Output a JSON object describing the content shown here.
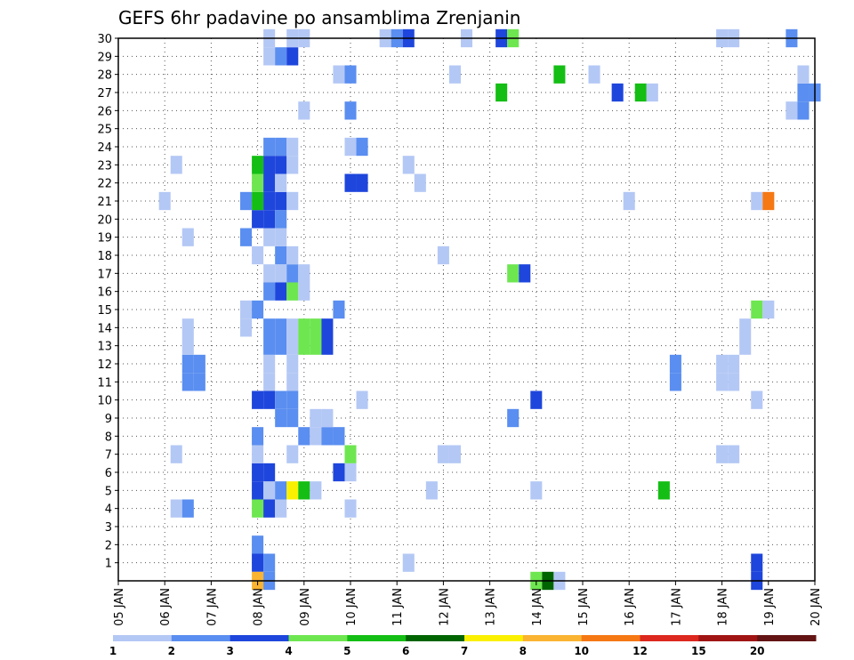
{
  "chart_data": {
    "type": "heatmap",
    "title": "GEFS 6hr padavine po ansamblima Zrenjanin",
    "xlabel": "",
    "ylabel": "",
    "x_ticks": [
      "05 JAN",
      "06 JAN",
      "07 JAN",
      "08 JAN",
      "09 JAN",
      "10 JAN",
      "11 JAN",
      "12 JAN",
      "13 JAN",
      "14 JAN",
      "15 JAN",
      "16 JAN",
      "17 JAN",
      "18 JAN",
      "19 JAN",
      "20 JAN"
    ],
    "y_ticks": [
      "1",
      "2",
      "3",
      "4",
      "5",
      "6",
      "7",
      "8",
      "9",
      "10",
      "11",
      "12",
      "13",
      "14",
      "15",
      "16",
      "17",
      "18",
      "19",
      "20",
      "21",
      "22",
      "23",
      "24",
      "25",
      "26",
      "27",
      "28",
      "29",
      "30"
    ],
    "xlim": [
      0,
      60
    ],
    "ylim": [
      0,
      30
    ],
    "time_step_hours": 6,
    "grid": true,
    "colorbar": {
      "position": "bottom",
      "ticks": [
        "1",
        "2",
        "3",
        "4",
        "5",
        "6",
        "7",
        "8",
        "10",
        "12",
        "15",
        "20"
      ],
      "colors": [
        "#b4c8f5",
        "#5a8ef0",
        "#1e46dc",
        "#6ee650",
        "#14be14",
        "#006400",
        "#faf000",
        "#fab432",
        "#f57814",
        "#dc281e",
        "#a01414",
        "#641414"
      ]
    },
    "cells": [
      [
        12,
        1,
        3
      ],
      [
        13,
        1,
        2
      ],
      [
        25,
        1,
        1
      ],
      [
        55,
        1,
        3
      ],
      [
        12,
        2,
        2
      ],
      [
        5,
        4,
        1
      ],
      [
        6,
        4,
        2
      ],
      [
        12,
        4,
        4
      ],
      [
        13,
        4,
        3
      ],
      [
        14,
        4,
        1
      ],
      [
        20,
        4,
        1
      ],
      [
        12,
        5,
        3
      ],
      [
        13,
        5,
        1
      ],
      [
        14,
        5,
        2
      ],
      [
        15,
        5,
        7
      ],
      [
        16,
        5,
        5
      ],
      [
        17,
        5,
        1
      ],
      [
        27,
        5,
        1
      ],
      [
        36,
        5,
        1
      ],
      [
        47,
        5,
        5
      ],
      [
        12,
        6,
        3
      ],
      [
        13,
        6,
        3
      ],
      [
        19,
        6,
        3
      ],
      [
        20,
        6,
        1
      ],
      [
        5,
        7,
        1
      ],
      [
        12,
        7,
        1
      ],
      [
        15,
        7,
        1
      ],
      [
        20,
        7,
        4
      ],
      [
        28,
        7,
        1
      ],
      [
        29,
        7,
        1
      ],
      [
        52,
        7,
        1
      ],
      [
        53,
        7,
        1
      ],
      [
        12,
        8,
        2
      ],
      [
        16,
        8,
        2
      ],
      [
        17,
        8,
        1
      ],
      [
        18,
        8,
        2
      ],
      [
        19,
        8,
        2
      ],
      [
        14,
        9,
        2
      ],
      [
        15,
        9,
        2
      ],
      [
        17,
        9,
        1
      ],
      [
        18,
        9,
        1
      ],
      [
        34,
        9,
        2
      ],
      [
        12,
        10,
        3
      ],
      [
        13,
        10,
        3
      ],
      [
        14,
        10,
        2
      ],
      [
        15,
        10,
        2
      ],
      [
        21,
        10,
        1
      ],
      [
        36,
        10,
        3
      ],
      [
        55,
        10,
        1
      ],
      [
        6,
        11,
        2
      ],
      [
        7,
        11,
        2
      ],
      [
        13,
        11,
        1
      ],
      [
        15,
        11,
        1
      ],
      [
        48,
        11,
        2
      ],
      [
        52,
        11,
        1
      ],
      [
        53,
        11,
        1
      ],
      [
        6,
        12,
        2
      ],
      [
        7,
        12,
        2
      ],
      [
        13,
        12,
        1
      ],
      [
        15,
        12,
        1
      ],
      [
        48,
        12,
        2
      ],
      [
        52,
        12,
        1
      ],
      [
        53,
        12,
        1
      ],
      [
        6,
        13,
        1
      ],
      [
        13,
        13,
        2
      ],
      [
        14,
        13,
        2
      ],
      [
        15,
        13,
        1
      ],
      [
        16,
        13,
        4
      ],
      [
        17,
        13,
        4
      ],
      [
        18,
        13,
        3
      ],
      [
        54,
        13,
        1
      ],
      [
        6,
        14,
        1
      ],
      [
        11,
        14,
        1
      ],
      [
        13,
        14,
        2
      ],
      [
        14,
        14,
        2
      ],
      [
        15,
        14,
        1
      ],
      [
        16,
        14,
        4
      ],
      [
        17,
        14,
        4
      ],
      [
        18,
        14,
        3
      ],
      [
        54,
        14,
        1
      ],
      [
        11,
        15,
        1
      ],
      [
        12,
        15,
        2
      ],
      [
        19,
        15,
        2
      ],
      [
        55,
        15,
        4
      ],
      [
        56,
        15,
        1
      ],
      [
        13,
        16,
        2
      ],
      [
        14,
        16,
        3
      ],
      [
        15,
        16,
        4
      ],
      [
        16,
        16,
        1
      ],
      [
        13,
        17,
        1
      ],
      [
        14,
        17,
        1
      ],
      [
        15,
        17,
        2
      ],
      [
        16,
        17,
        1
      ],
      [
        34,
        17,
        4
      ],
      [
        35,
        17,
        3
      ],
      [
        12,
        18,
        1
      ],
      [
        14,
        18,
        2
      ],
      [
        15,
        18,
        1
      ],
      [
        28,
        18,
        1
      ],
      [
        6,
        19,
        1
      ],
      [
        11,
        19,
        2
      ],
      [
        13,
        19,
        1
      ],
      [
        14,
        19,
        1
      ],
      [
        12,
        20,
        3
      ],
      [
        13,
        20,
        3
      ],
      [
        14,
        20,
        2
      ],
      [
        4,
        21,
        1
      ],
      [
        11,
        21,
        2
      ],
      [
        12,
        21,
        5
      ],
      [
        13,
        21,
        3
      ],
      [
        14,
        21,
        3
      ],
      [
        15,
        21,
        1
      ],
      [
        44,
        21,
        1
      ],
      [
        55,
        21,
        1
      ],
      [
        56,
        21,
        9
      ],
      [
        12,
        22,
        4
      ],
      [
        13,
        22,
        3
      ],
      [
        14,
        22,
        1
      ],
      [
        20,
        22,
        3
      ],
      [
        21,
        22,
        3
      ],
      [
        26,
        22,
        1
      ],
      [
        5,
        23,
        1
      ],
      [
        12,
        23,
        5
      ],
      [
        13,
        23,
        3
      ],
      [
        14,
        23,
        3
      ],
      [
        15,
        23,
        1
      ],
      [
        25,
        23,
        1
      ],
      [
        13,
        24,
        2
      ],
      [
        14,
        24,
        2
      ],
      [
        15,
        24,
        1
      ],
      [
        20,
        24,
        1
      ],
      [
        21,
        24,
        2
      ],
      [
        16,
        26,
        1
      ],
      [
        20,
        26,
        2
      ],
      [
        58,
        26,
        1
      ],
      [
        59,
        26,
        2
      ],
      [
        33,
        27,
        5
      ],
      [
        43,
        27,
        3
      ],
      [
        45,
        27,
        5
      ],
      [
        46,
        27,
        1
      ],
      [
        59,
        27,
        2
      ],
      [
        60,
        27,
        2
      ],
      [
        19,
        28,
        1
      ],
      [
        20,
        28,
        2
      ],
      [
        29,
        28,
        1
      ],
      [
        38,
        28,
        5
      ],
      [
        41,
        28,
        1
      ],
      [
        59,
        28,
        1
      ],
      [
        13,
        29,
        1
      ],
      [
        14,
        29,
        2
      ],
      [
        15,
        29,
        3
      ],
      [
        13,
        30,
        1
      ],
      [
        15,
        30,
        1
      ],
      [
        16,
        30,
        1
      ],
      [
        23,
        30,
        1
      ],
      [
        24,
        30,
        2
      ],
      [
        25,
        30,
        3
      ],
      [
        30,
        30,
        1
      ],
      [
        33,
        30,
        3
      ],
      [
        34,
        30,
        4
      ],
      [
        52,
        30,
        1
      ],
      [
        53,
        30,
        1
      ],
      [
        58,
        30,
        2
      ],
      [
        12,
        0,
        8
      ],
      [
        13,
        0,
        2
      ],
      [
        36,
        0,
        4
      ],
      [
        37,
        0,
        6
      ],
      [
        38,
        0,
        1
      ],
      [
        55,
        0,
        3
      ]
    ]
  }
}
